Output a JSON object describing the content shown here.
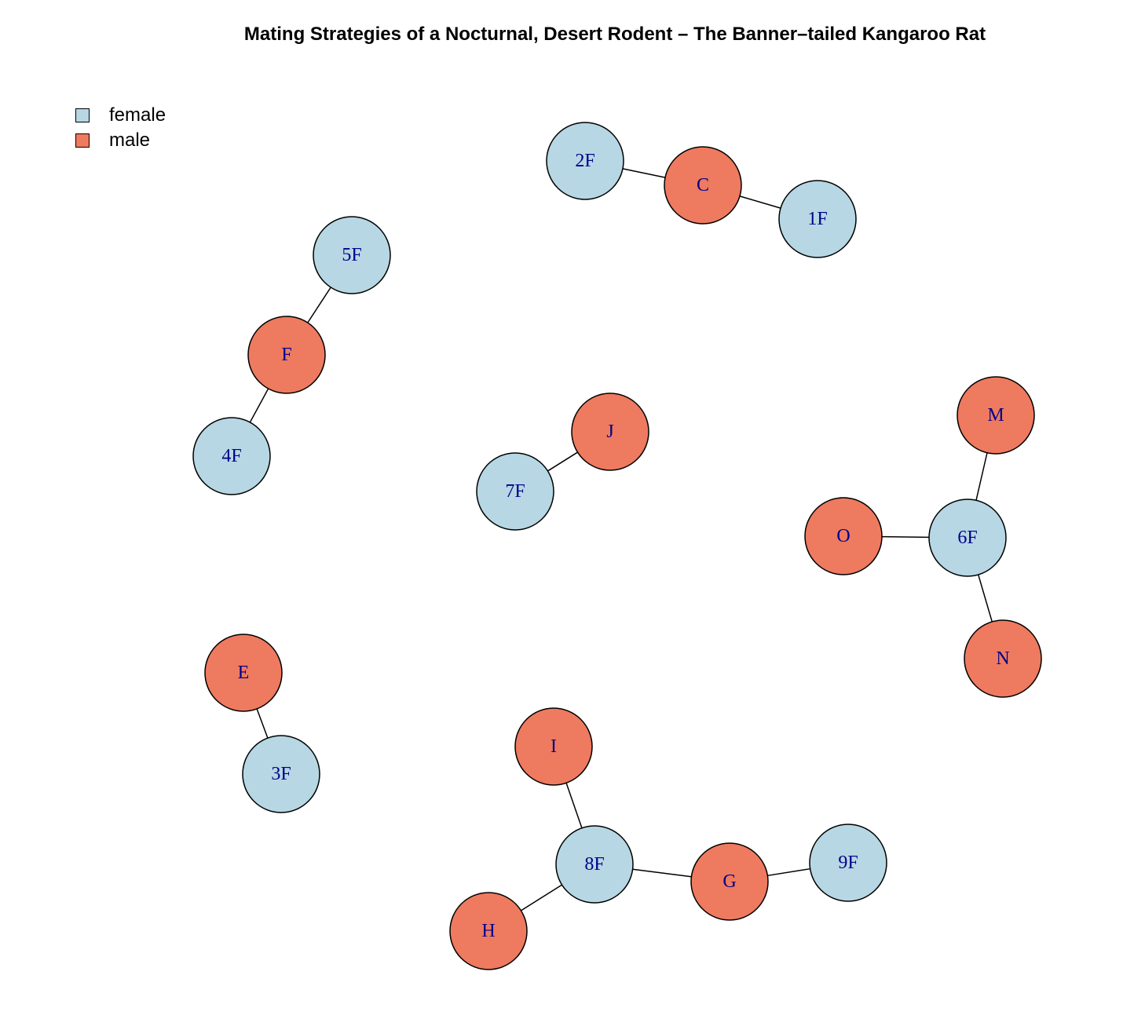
{
  "title": "Mating Strategies of a Nocturnal, Desert Rodent – The Banner–tailed Kangaroo Rat",
  "legend": [
    {
      "label": "female",
      "group": "female"
    },
    {
      "label": "male",
      "group": "male"
    }
  ],
  "colors": {
    "female": "#b6d7e3",
    "male": "#ee7a5f",
    "label": "#00008b",
    "edge": "#000000",
    "outline": "#000000"
  },
  "nodes": [
    {
      "id": "2F",
      "group": "female"
    },
    {
      "id": "C",
      "group": "male"
    },
    {
      "id": "1F",
      "group": "female"
    },
    {
      "id": "5F",
      "group": "female"
    },
    {
      "id": "F",
      "group": "male"
    },
    {
      "id": "4F",
      "group": "female"
    },
    {
      "id": "J",
      "group": "male"
    },
    {
      "id": "7F",
      "group": "female"
    },
    {
      "id": "M",
      "group": "male"
    },
    {
      "id": "O",
      "group": "male"
    },
    {
      "id": "6F",
      "group": "female"
    },
    {
      "id": "N",
      "group": "male"
    },
    {
      "id": "E",
      "group": "male"
    },
    {
      "id": "3F",
      "group": "female"
    },
    {
      "id": "I",
      "group": "male"
    },
    {
      "id": "8F",
      "group": "female"
    },
    {
      "id": "G",
      "group": "male"
    },
    {
      "id": "9F",
      "group": "female"
    },
    {
      "id": "H",
      "group": "male"
    }
  ],
  "edges": [
    [
      "2F",
      "C"
    ],
    [
      "C",
      "1F"
    ],
    [
      "5F",
      "F"
    ],
    [
      "F",
      "4F"
    ],
    [
      "J",
      "7F"
    ],
    [
      "M",
      "6F"
    ],
    [
      "O",
      "6F"
    ],
    [
      "6F",
      "N"
    ],
    [
      "E",
      "3F"
    ],
    [
      "I",
      "8F"
    ],
    [
      "8F",
      "G"
    ],
    [
      "G",
      "9F"
    ],
    [
      "8F",
      "H"
    ]
  ]
}
